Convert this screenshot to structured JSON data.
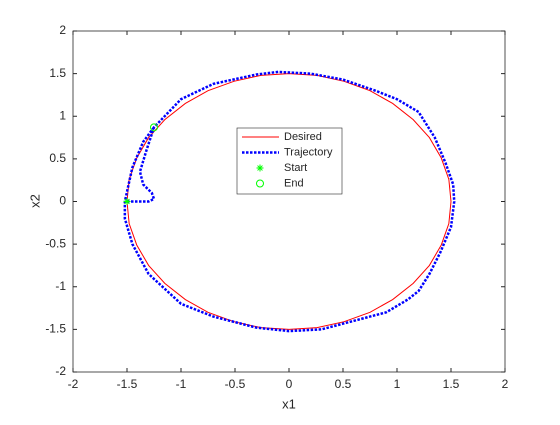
{
  "chart_data": {
    "type": "line",
    "xlabel": "x1",
    "ylabel": "x2",
    "xlim": [
      -2,
      2
    ],
    "ylim": [
      -2,
      2
    ],
    "xticks": [
      -2,
      -1.5,
      -1,
      -0.5,
      0,
      0.5,
      1,
      1.5,
      2
    ],
    "yticks": [
      -2,
      -1.5,
      -1,
      -0.5,
      0,
      0.5,
      1,
      1.5,
      2
    ],
    "legend": "center",
    "series": [
      {
        "name": "Desired",
        "color": "#ff0000",
        "style": "solid",
        "x": [
          1.5,
          1.48,
          1.41,
          1.3,
          1.15,
          0.96,
          0.75,
          0.51,
          0.26,
          0,
          -0.26,
          -0.51,
          -0.75,
          -0.96,
          -1.15,
          -1.3,
          -1.41,
          -1.48,
          -1.5,
          -1.48,
          -1.41,
          -1.3,
          -1.15,
          -0.96,
          -0.75,
          -0.51,
          -0.26,
          0,
          0.26,
          0.51,
          0.75,
          0.96,
          1.15,
          1.3,
          1.41,
          1.48,
          1.5
        ],
        "values": [
          0,
          0.26,
          0.51,
          0.75,
          0.96,
          1.15,
          1.3,
          1.41,
          1.48,
          1.5,
          1.48,
          1.41,
          1.3,
          1.15,
          0.96,
          0.75,
          0.51,
          0.26,
          0,
          -0.26,
          -0.51,
          -0.75,
          -0.96,
          -1.15,
          -1.3,
          -1.41,
          -1.48,
          -1.5,
          -1.48,
          -1.41,
          -1.3,
          -1.15,
          -0.96,
          -0.75,
          -0.51,
          -0.26,
          0
        ]
      },
      {
        "name": "Trajectory",
        "color": "#0000ff",
        "style": "dotted",
        "x": [
          -1.5,
          -1.3,
          -1.25,
          -1.27,
          -1.35,
          -1.38,
          -1.32,
          -1.25,
          -1.0,
          -0.7,
          -0.3,
          -0.1,
          0.2,
          0.5,
          0.8,
          1.0,
          1.2,
          1.35,
          1.45,
          1.52,
          1.53,
          1.5,
          1.4,
          1.3,
          1.2,
          1.1,
          0.9,
          0.6,
          0.3,
          0,
          -0.3,
          -0.7,
          -1.0,
          -1.3,
          -1.45,
          -1.52,
          -1.52,
          -1.45,
          -1.35,
          -1.25
        ],
        "values": [
          0,
          0,
          0.03,
          0.1,
          0.2,
          0.35,
          0.6,
          0.87,
          1.2,
          1.38,
          1.49,
          1.52,
          1.5,
          1.43,
          1.3,
          1.2,
          1.05,
          0.75,
          0.45,
          0.2,
          0,
          -0.3,
          -0.6,
          -0.85,
          -1.05,
          -1.15,
          -1.3,
          -1.4,
          -1.5,
          -1.52,
          -1.48,
          -1.35,
          -1.2,
          -0.85,
          -0.5,
          -0.2,
          0,
          0.4,
          0.7,
          0.87
        ]
      },
      {
        "name": "Start",
        "color": "#00ff00",
        "marker": "star",
        "x": [
          -1.5
        ],
        "values": [
          0
        ]
      },
      {
        "name": "End",
        "color": "#00ff00",
        "marker": "circle",
        "x": [
          -1.25
        ],
        "values": [
          0.87
        ]
      }
    ]
  }
}
